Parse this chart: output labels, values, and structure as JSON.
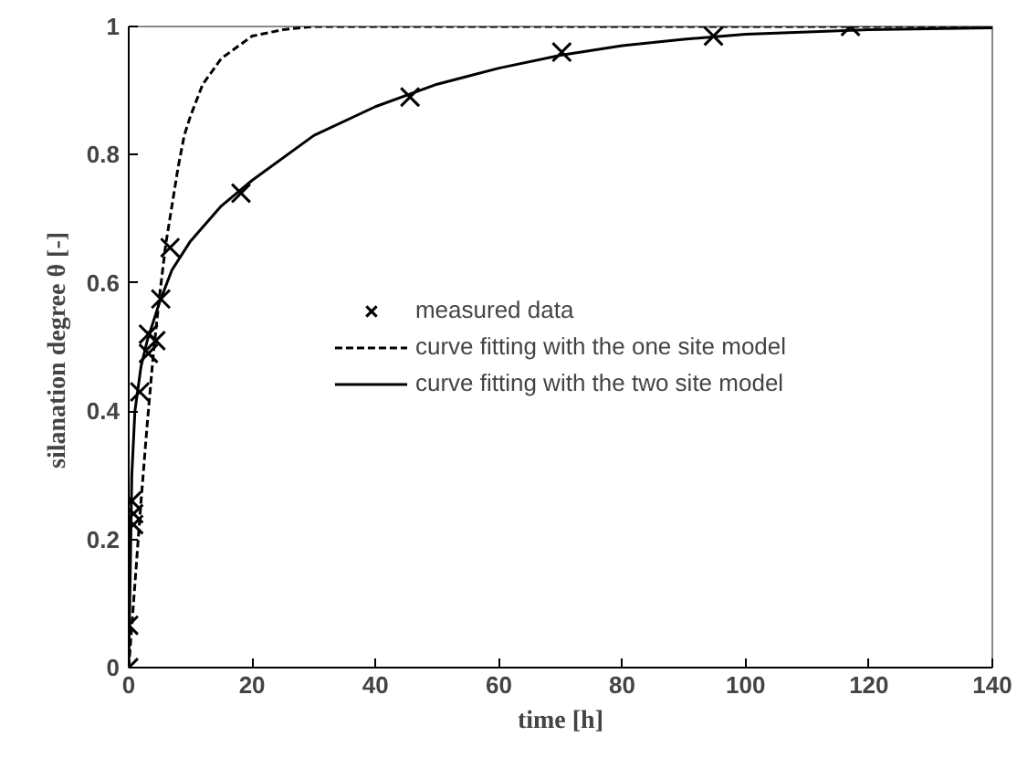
{
  "chart_data": {
    "type": "scatter",
    "xlabel": "time [h]",
    "ylabel": "silanation degree θ  [-]",
    "xlim": [
      0,
      140
    ],
    "ylim": [
      0,
      1
    ],
    "xticks": [
      0,
      20,
      40,
      60,
      80,
      100,
      120,
      140
    ],
    "yticks": [
      0,
      0.2,
      0.4,
      0.6,
      0.8,
      1
    ],
    "grid": false,
    "legend": "center",
    "series": [
      {
        "name": "measured data",
        "marker": "cross",
        "color": "#000000",
        "x": [
          0,
          0,
          0.8,
          0.8,
          0.5,
          1.8,
          3.2,
          4.4,
          3.2,
          5.2,
          6.7,
          18.2,
          45.6,
          70.2,
          94.8,
          117
        ],
        "values": [
          0,
          0.066,
          0.223,
          0.24,
          0.26,
          0.43,
          0.49,
          0.51,
          0.52,
          0.575,
          0.655,
          0.74,
          0.89,
          0.96,
          0.985,
          1.0
        ]
      },
      {
        "name": "curve fitting with the one site model",
        "type": "line",
        "line_style": "dashed",
        "color": "#000000",
        "x": [
          0,
          1,
          2,
          3,
          4,
          5,
          6,
          7,
          8,
          9,
          10,
          12,
          15,
          20,
          25,
          30,
          140
        ],
        "values": [
          0,
          0.13,
          0.26,
          0.38,
          0.49,
          0.58,
          0.66,
          0.72,
          0.78,
          0.83,
          0.86,
          0.91,
          0.95,
          0.985,
          0.995,
          1,
          1
        ]
      },
      {
        "name": "curve fitting with the two site model",
        "type": "line",
        "line_style": "solid",
        "color": "#000000",
        "x": [
          0,
          0.5,
          1,
          2,
          3,
          5,
          7,
          10,
          15,
          20,
          30,
          40,
          50,
          60,
          70,
          80,
          90,
          100,
          120,
          140
        ],
        "values": [
          0,
          0.3,
          0.4,
          0.47,
          0.51,
          0.57,
          0.62,
          0.665,
          0.72,
          0.76,
          0.83,
          0.875,
          0.91,
          0.935,
          0.955,
          0.97,
          0.98,
          0.988,
          0.995,
          0.998
        ]
      }
    ]
  }
}
